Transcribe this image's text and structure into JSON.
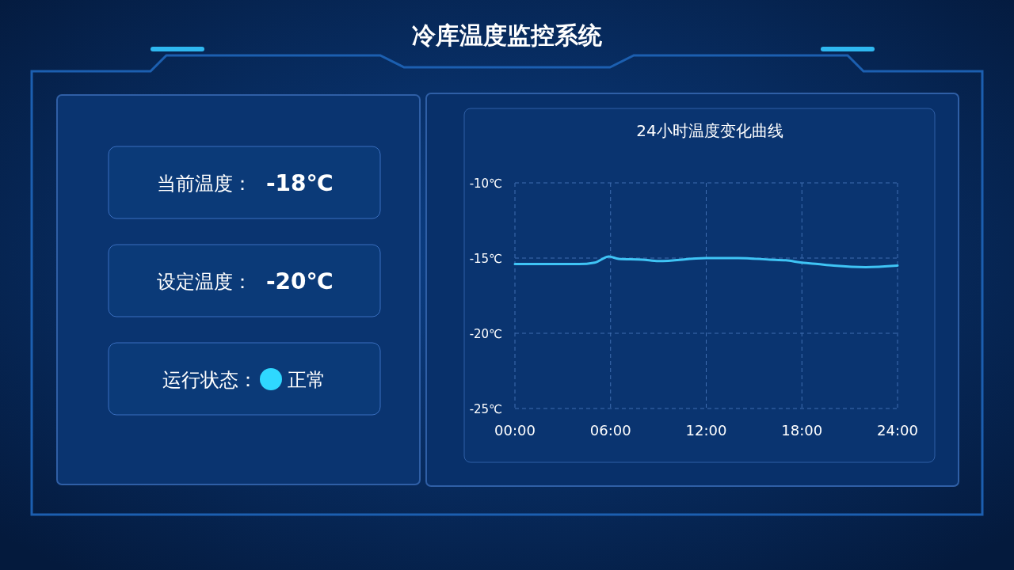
{
  "chart_data": [
    {
      "type": "other",
      "title": "冷库温度监控系统",
      "annotations": [
        "当前温度：",
        "-18℃",
        "设定温度：",
        "-20℃",
        "运行状态：",
        "正常"
      ]
    },
    {
      "type": "line",
      "title": "24小时温度变化曲线",
      "x": [
        0,
        2,
        4,
        5,
        5.9,
        6.5,
        8,
        9,
        12,
        14,
        16,
        17,
        18,
        19,
        20,
        22,
        24
      ],
      "series": [
        {
          "color": "#3fc4f5",
          "values": [
            -15.4,
            -15.4,
            -15.4,
            -15.3,
            -14.9,
            -15.05,
            -15.1,
            -15.2,
            -15.0,
            -15.0,
            -15.1,
            -15.15,
            -15.3,
            -15.4,
            -15.5,
            -15.6,
            -15.5
          ]
        }
      ],
      "xlim": [
        0,
        24
      ],
      "xticks": [
        {
          "value": 0,
          "label": "00:00"
        },
        {
          "value": 6,
          "label": "06:00"
        },
        {
          "value": 12,
          "label": "12:00"
        },
        {
          "value": 18,
          "label": "18:00"
        },
        {
          "value": 24,
          "label": "24:00"
        }
      ],
      "ylim": [
        -25,
        -10
      ],
      "yticks": [
        {
          "value": -10,
          "label": "-10℃"
        },
        {
          "value": -15,
          "label": "-15℃"
        },
        {
          "value": -20,
          "label": "-20℃"
        },
        {
          "value": -25,
          "label": "-25℃"
        }
      ],
      "grid": true,
      "marker": "none",
      "line_style": "solid"
    }
  ]
}
